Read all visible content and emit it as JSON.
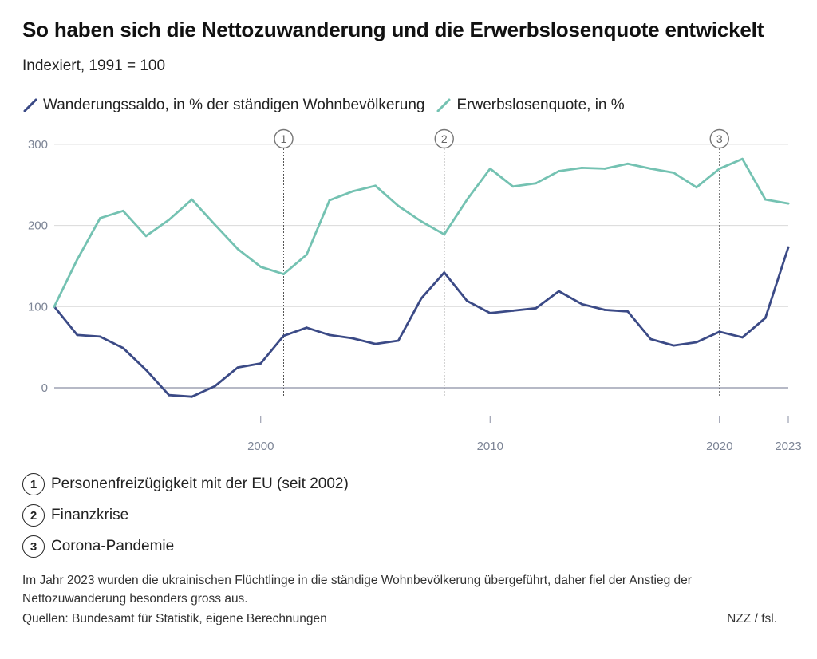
{
  "header": {
    "title": "So haben sich die Nettozuwanderung und die Erwerbslosenquote entwickelt",
    "subtitle": "Indexiert, 1991 = 100"
  },
  "colors": {
    "migration": "#3b4a86",
    "unemployment": "#74c2b2",
    "grid": "#d9d9d9",
    "zero_line": "#8a8fa3",
    "marker_line": "#555555"
  },
  "chart_data": {
    "type": "line",
    "x": [
      1991,
      1992,
      1993,
      1994,
      1995,
      1996,
      1997,
      1998,
      1999,
      2000,
      2001,
      2002,
      2003,
      2004,
      2005,
      2006,
      2007,
      2008,
      2009,
      2010,
      2011,
      2012,
      2013,
      2014,
      2015,
      2016,
      2017,
      2018,
      2019,
      2020,
      2021,
      2022,
      2023
    ],
    "series": [
      {
        "name": "Wanderungssaldo, in % der ständigen Wohnbevölkerung",
        "color": "#3b4a86",
        "values": [
          100,
          65,
          63,
          49,
          22,
          -9,
          -11,
          2,
          25,
          30,
          64,
          74,
          65,
          61,
          54,
          58,
          110,
          142,
          107,
          92,
          95,
          98,
          119,
          103,
          96,
          94,
          60,
          52,
          56,
          69,
          62,
          86,
          173
        ]
      },
      {
        "name": "Erwerbslosenquote, in %",
        "color": "#74c2b2",
        "values": [
          100,
          158,
          209,
          218,
          187,
          207,
          232,
          201,
          171,
          149,
          140,
          164,
          231,
          242,
          249,
          224,
          205,
          189,
          232,
          270,
          248,
          252,
          267,
          271,
          270,
          276,
          270,
          265,
          247,
          270,
          282,
          232,
          227
        ]
      }
    ],
    "xlim": [
      1991,
      2023
    ],
    "ylim": [
      -50,
      310
    ],
    "y_ticks": [
      0,
      100,
      200,
      300
    ],
    "x_ticks": [
      2000,
      2010,
      2020,
      2023
    ],
    "grid": true,
    "legend": "top-left",
    "events": [
      {
        "x": 2001,
        "label": "1"
      },
      {
        "x": 2008,
        "label": "2"
      },
      {
        "x": 2020,
        "label": "3"
      }
    ]
  },
  "notes": [
    {
      "number": "1",
      "text": "Personenfreizügigkeit mit der EU (seit 2002)"
    },
    {
      "number": "2",
      "text": "Finanzkrise"
    },
    {
      "number": "3",
      "text": "Corona-Pandemie"
    }
  ],
  "footer": {
    "footnote": "Im Jahr 2023 wurden die ukrainischen Flüchtlinge in die ständige Wohnbevölkerung übergeführt, daher fiel der Anstieg der Nettozuwanderung besonders gross aus.",
    "source": "Quellen: Bundesamt für Statistik, eigene Berechnungen",
    "credit": "NZZ / fsl."
  }
}
